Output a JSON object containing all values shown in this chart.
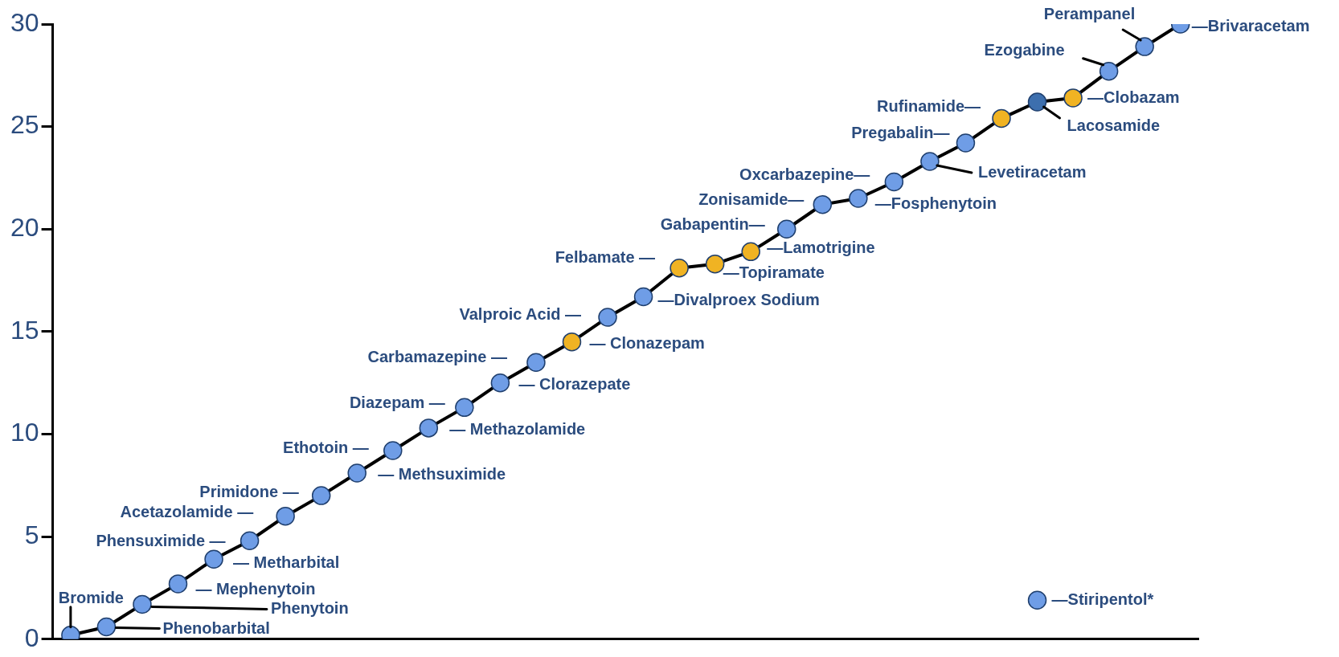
{
  "chart_data": {
    "type": "line",
    "categories": [
      null,
      null,
      null,
      null,
      null,
      null,
      null,
      null,
      null,
      null,
      null,
      null,
      null,
      null,
      null,
      null,
      null,
      null,
      null,
      null,
      null,
      null,
      null,
      null,
      null,
      null,
      null,
      null,
      null,
      null,
      null,
      null
    ],
    "ylim": [
      0,
      30
    ],
    "yticks": [
      0,
      5,
      10,
      15,
      20,
      25,
      30
    ],
    "tick_labels": "y",
    "grid": false,
    "legend": false,
    "series": [
      {
        "color": "#000000",
        "marker": "circle",
        "values": [
          0.2,
          0.6,
          1.7,
          2.7,
          3.9,
          4.8,
          6.0,
          7.0,
          8.1,
          9.2,
          10.3,
          11.3,
          12.5,
          13.5,
          14.5,
          15.7,
          16.7,
          18.1,
          18.3,
          18.9,
          20.0,
          21.2,
          21.5,
          22.3,
          23.3,
          24.2,
          25.4,
          26.2,
          26.4,
          27.7,
          28.9,
          30
        ],
        "colors": [
          "#6f9de6",
          "#6f9de6",
          "#6f9de6",
          "#6f9de6",
          "#6f9de6",
          "#6f9de6",
          "#6f9de6",
          "#6f9de6",
          "#6f9de6",
          "#6f9de6",
          "#6f9de6",
          "#6f9de6",
          "#6f9de6",
          "#6f9de6",
          "#f0b323",
          "#6f9de6",
          "#6f9de6",
          "#f0b323",
          "#f0b323",
          "#f0b323",
          "#6f9de6",
          "#6f9de6",
          "#6f9de6",
          "#6f9de6",
          "#6f9de6",
          "#6f9de6",
          "#f0b323",
          "#3d6fae",
          "#f0b323",
          "#6f9de6",
          "#6f9de6",
          "#6f9de6"
        ]
      },
      {
        "color": "#6f9de6",
        "marker": "circle",
        "values": [
          null,
          null,
          null,
          null,
          null,
          null,
          null,
          null,
          null,
          null,
          null,
          null,
          null,
          null,
          null,
          null,
          null,
          null,
          null,
          null,
          null,
          null,
          null,
          null,
          null,
          null,
          null,
          1.9,
          null,
          null,
          null,
          null
        ]
      }
    ],
    "annotations": [
      "Bromide",
      "Phenobarbital",
      "Phenytoin",
      "— Mephenytoin",
      "— Metharbital",
      "Phensuximide —",
      "Acetazolamide —",
      "Primidone —",
      "— Methsuximide",
      "Ethotoin —",
      "— Methazolamide",
      "Diazepam —",
      "— Clorazepate",
      "Carbamazepine —",
      "— Clonazepam",
      "Valproic Acid —",
      "—Divalproex Sodium",
      "Felbamate —",
      "—Topiramate",
      "—Lamotrigine",
      "Gabapentin—",
      "Zonisamide—",
      "—Fosphenytoin",
      "Oxcarbazepine—",
      "Levetiracetam",
      "Pregabalin—",
      "Rufinamide—",
      "Lacosamide",
      "—Clobazam",
      "Ezogabine",
      "Perampanel",
      "—Brivaracetam",
      "—Stiripentol*"
    ]
  }
}
